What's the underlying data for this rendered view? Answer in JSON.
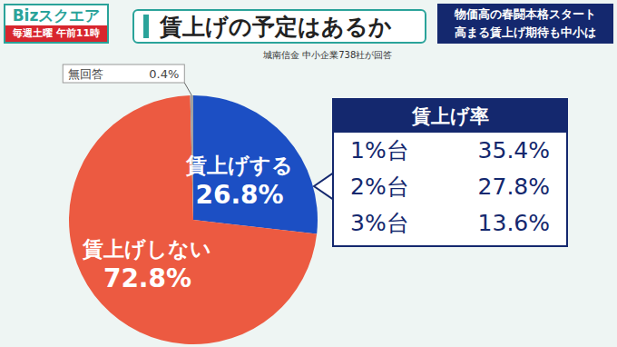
{
  "header": {
    "logo": "Bizスクエア",
    "schedule": "毎週土曜 午前11時",
    "headline": [
      "物価高の春闘本格スタート",
      "高まる賃上げ期待も中小は"
    ]
  },
  "chart_data": [
    {
      "type": "pie",
      "title": "賃上げの予定はあるか",
      "subtitle": "城南信金 中小企業738社が回答",
      "categories": [
        "賃上げする",
        "賃上げしない",
        "無回答"
      ],
      "values": [
        26.8,
        72.8,
        0.4
      ],
      "value_labels": [
        "26.8%",
        "72.8%",
        "0.4%"
      ],
      "colors": [
        "#1c4fc4",
        "#ec5a41",
        "#a0a0a0"
      ],
      "data_labels": true,
      "legend": false
    },
    {
      "type": "table",
      "title": "賃上げ率",
      "categories": [
        "1%台",
        "2%台",
        "3%台"
      ],
      "values": [
        35.4,
        27.8,
        13.6
      ],
      "value_labels": [
        "35.4%",
        "27.8%",
        "13.6%"
      ]
    }
  ]
}
